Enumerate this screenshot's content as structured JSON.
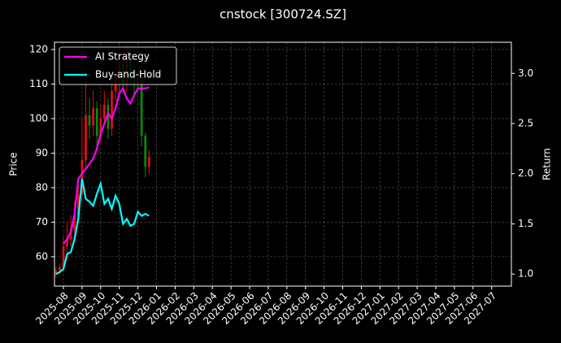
{
  "chart_data": {
    "type": "candlestick",
    "title": "cnstock [300724.SZ]",
    "ylabel": "Price",
    "y2label": "Return",
    "x": [
      -0.4,
      -0.2,
      0,
      0.2,
      0.4,
      0.6,
      0.8,
      1.0,
      1.2,
      1.4,
      1.6,
      1.8,
      2.0,
      2.2,
      2.4,
      2.6,
      2.8,
      3.0,
      3.2,
      3.4,
      3.6,
      3.8,
      4.0,
      4.2,
      4.4,
      4.6
    ],
    "open": [
      55,
      56,
      57,
      63,
      65,
      68,
      72,
      78,
      88,
      101,
      98,
      103,
      95,
      100,
      104,
      97,
      108,
      112,
      116,
      110,
      118,
      114,
      110,
      112,
      95,
      86
    ],
    "high": [
      57,
      58,
      66,
      70,
      72,
      76,
      82,
      100,
      112,
      106,
      108,
      105,
      104,
      108,
      106,
      112,
      115,
      120,
      118,
      121,
      120,
      116,
      115,
      114,
      96,
      91
    ],
    "low": [
      54,
      55,
      56,
      61,
      63,
      66,
      70,
      76,
      86,
      94,
      95,
      92,
      93,
      98,
      94,
      95,
      105,
      108,
      107,
      108,
      110,
      107,
      108,
      92,
      83,
      84
    ],
    "close": [
      56,
      57,
      63,
      65,
      68,
      72,
      78,
      88,
      101,
      98,
      103,
      95,
      100,
      104,
      97,
      108,
      112,
      116,
      110,
      118,
      114,
      110,
      112,
      95,
      86,
      89
    ],
    "up_color": "#e01010",
    "down_color": "#0a8a0a",
    "series": [
      {
        "name": "AI Strategy",
        "color": "#ff00ff",
        "axis": "y2",
        "values": [
          null,
          null,
          1.3,
          1.35,
          1.42,
          1.6,
          1.95,
          2.0,
          2.05,
          2.1,
          2.15,
          2.25,
          2.4,
          2.5,
          2.6,
          2.55,
          2.65,
          2.8,
          2.85,
          2.75,
          2.7,
          2.78,
          2.85,
          2.85,
          2.85,
          2.86
        ]
      },
      {
        "name": "Buy-and-Hold",
        "color": "#00ffff",
        "axis": "y2",
        "values": [
          1.0,
          1.02,
          1.05,
          1.2,
          1.22,
          1.35,
          1.55,
          1.95,
          1.75,
          1.72,
          1.68,
          1.8,
          1.9,
          1.7,
          1.75,
          1.65,
          1.78,
          1.7,
          1.5,
          1.55,
          1.48,
          1.5,
          1.62,
          1.58,
          1.6,
          1.58
        ]
      }
    ],
    "xlim": [
      -0.48,
      24.06
    ],
    "xticks": [
      {
        "value": 0,
        "label": "2025-08"
      },
      {
        "value": 1,
        "label": "2025-09"
      },
      {
        "value": 2,
        "label": "2025-10"
      },
      {
        "value": 3,
        "label": "2025-11"
      },
      {
        "value": 4,
        "label": "2025-12"
      },
      {
        "value": 5,
        "label": "2026-01"
      },
      {
        "value": 6,
        "label": "2026-02"
      },
      {
        "value": 7,
        "label": "2026-03"
      },
      {
        "value": 8,
        "label": "2026-04"
      },
      {
        "value": 9,
        "label": "2026-05"
      },
      {
        "value": 10,
        "label": "2026-06"
      },
      {
        "value": 11,
        "label": "2026-07"
      },
      {
        "value": 12,
        "label": "2026-08"
      },
      {
        "value": 13,
        "label": "2026-09"
      },
      {
        "value": 14,
        "label": "2026-10"
      },
      {
        "value": 15,
        "label": "2026-11"
      },
      {
        "value": 16,
        "label": "2026-12"
      },
      {
        "value": 17,
        "label": "2027-01"
      },
      {
        "value": 18,
        "label": "2027-02"
      },
      {
        "value": 19,
        "label": "2027-03"
      },
      {
        "value": 20,
        "label": "2027-04"
      },
      {
        "value": 21,
        "label": "2027-05"
      },
      {
        "value": 22,
        "label": "2027-06"
      },
      {
        "value": 23,
        "label": "2027-07"
      }
    ],
    "ylim": [
      51.5,
      122.1
    ],
    "yticks": [
      60,
      70,
      80,
      90,
      100,
      110,
      120
    ],
    "y2lim": [
      0.88,
      3.31
    ],
    "y2ticks": [
      {
        "value": 1.0,
        "label": "1.0"
      },
      {
        "value": 1.5,
        "label": "1.5"
      },
      {
        "value": 2.0,
        "label": "2.0"
      },
      {
        "value": 2.5,
        "label": "2.5"
      },
      {
        "value": 3.0,
        "label": "3.0"
      }
    ],
    "grid": true,
    "legend": "upper left"
  }
}
